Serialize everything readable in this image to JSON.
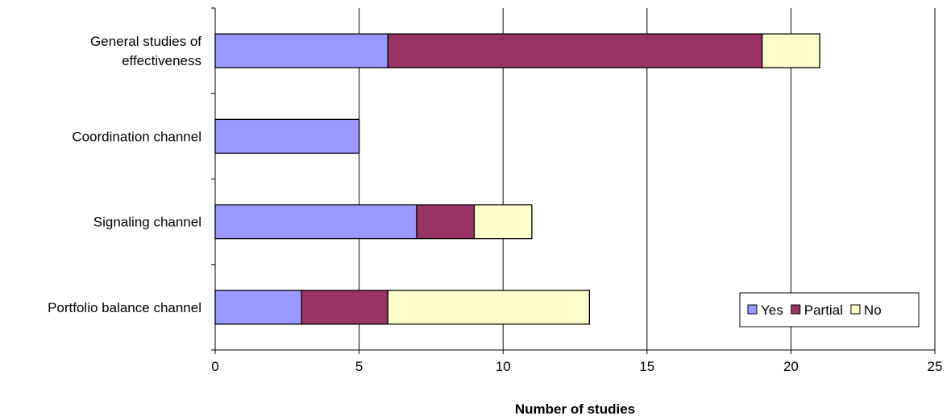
{
  "chart_data": {
    "type": "bar",
    "orientation": "horizontal",
    "stacked": true,
    "categories": [
      "General studies of effectiveness",
      "Coordination channel",
      "Signaling channel",
      "Portfolio balance channel"
    ],
    "category_lines": [
      [
        "General studies of",
        "effectiveness"
      ],
      [
        "Coordination channel"
      ],
      [
        "Signaling channel"
      ],
      [
        "Portfolio balance channel"
      ]
    ],
    "series": [
      {
        "name": "Yes",
        "values": [
          6,
          5,
          7,
          3
        ],
        "color": "#9999ff"
      },
      {
        "name": "Partial",
        "values": [
          13,
          0,
          2,
          3
        ],
        "color": "#993366"
      },
      {
        "name": "No",
        "values": [
          2,
          0,
          2,
          7
        ],
        "color": "#ffffcc"
      }
    ],
    "xlabel": "Number of studies",
    "ylabel": "",
    "xlim": [
      0,
      25
    ],
    "xticks": [
      0,
      5,
      10,
      15,
      20,
      25
    ],
    "grid": true,
    "legend_position": "bottom-right",
    "colors": {
      "gridline": "#000000",
      "bar_edge": "#000000"
    }
  }
}
